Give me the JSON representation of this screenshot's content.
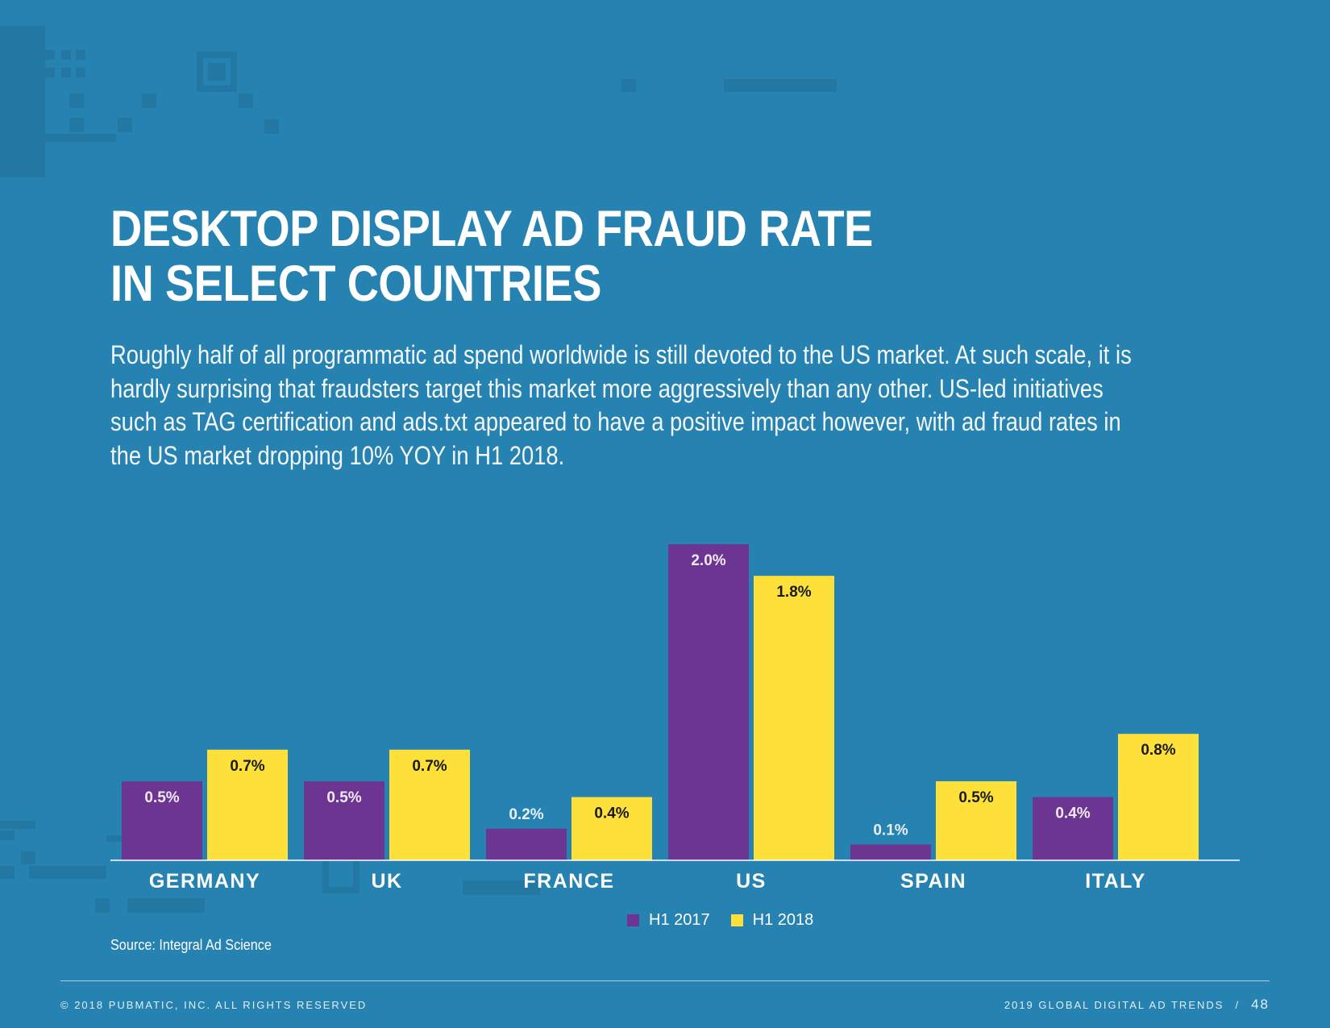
{
  "header": {
    "title_line1": "DESKTOP DISPLAY AD FRAUD RATE",
    "title_line2": "IN SELECT COUNTRIES"
  },
  "intro": "Roughly half of all programmatic ad spend worldwide is still devoted to the US market. At such scale, it is hardly surprising that fraudsters target this market more aggressively than any other. US-led initiatives such as TAG certification and ads.txt appeared to have a positive impact however, with ad fraud rates in the US market dropping 10% YOY in H1 2018.",
  "chart_data": {
    "type": "bar",
    "categories": [
      "GERMANY",
      "UK",
      "FRANCE",
      "US",
      "SPAIN",
      "ITALY"
    ],
    "series": [
      {
        "name": "H1 2017",
        "color": "#6c3591",
        "values": [
          0.5,
          0.5,
          0.2,
          2.0,
          0.1,
          0.4
        ],
        "labels": [
          "0.5%",
          "0.5%",
          "0.2%",
          "2.0%",
          "0.1%",
          "0.4%"
        ]
      },
      {
        "name": "H1 2018",
        "color": "#fde13a",
        "values": [
          0.7,
          0.7,
          0.4,
          1.8,
          0.5,
          0.8
        ],
        "labels": [
          "0.7%",
          "0.7%",
          "0.4%",
          "1.8%",
          "0.5%",
          "0.8%"
        ]
      }
    ],
    "ylim": [
      0,
      2.0
    ],
    "grid": false,
    "legend_position": "bottom-center"
  },
  "source": "Source: Integral Ad Science",
  "footer": {
    "copyright": "© 2018 PUBMATIC, INC. ALL RIGHTS RESERVED",
    "report": "2019 GLOBAL DIGITAL AD TRENDS",
    "separator": "/",
    "page": "48"
  }
}
